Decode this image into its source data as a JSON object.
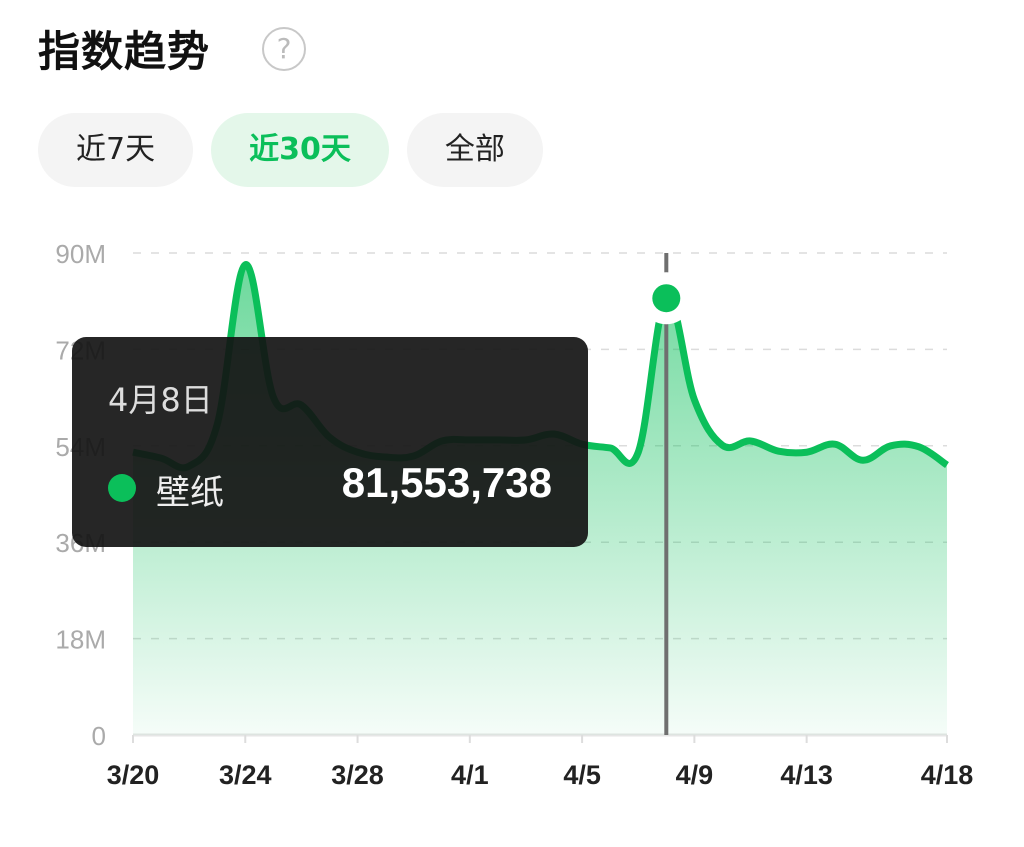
{
  "header": {
    "title": "指数趋势",
    "help_icon": "question-circle-icon"
  },
  "tabs": [
    {
      "label": "近7天",
      "active": false
    },
    {
      "label": "近30天",
      "active": true
    },
    {
      "label": "全部",
      "active": false
    }
  ],
  "colors": {
    "accent": "#0bbf5a",
    "tooltip_bg": "#1e1e1e"
  },
  "tooltip": {
    "date": "4月8日",
    "series": "壁纸",
    "value": "81,553,738"
  },
  "chart_data": {
    "type": "area",
    "title": "",
    "xlabel": "",
    "ylabel": "",
    "ylim": [
      0,
      90000000
    ],
    "yticks": [
      0,
      18000000,
      36000000,
      54000000,
      72000000,
      90000000
    ],
    "ytick_labels": [
      "0",
      "18M",
      "36M",
      "54M",
      "72M",
      "90M"
    ],
    "xtick_labels": [
      "3/20",
      "3/24",
      "3/28",
      "4/1",
      "4/5",
      "4/9",
      "4/13",
      "4/18"
    ],
    "grid": true,
    "x": [
      "3/20",
      "3/21",
      "3/22",
      "3/23",
      "3/24",
      "3/25",
      "3/26",
      "3/27",
      "3/28",
      "3/29",
      "3/30",
      "3/31",
      "4/1",
      "4/2",
      "4/3",
      "4/4",
      "4/5",
      "4/6",
      "4/7",
      "4/8",
      "4/9",
      "4/10",
      "4/11",
      "4/12",
      "4/13",
      "4/14",
      "4/15",
      "4/16",
      "4/17",
      "4/18"
    ],
    "series": [
      {
        "name": "壁纸",
        "values": [
          52800000,
          51700000,
          50200000,
          58000000,
          87800000,
          63100000,
          61600000,
          55600000,
          52800000,
          51900000,
          52100000,
          54900000,
          55100000,
          55100000,
          55100000,
          56200000,
          54300000,
          53600000,
          52800000,
          81553738,
          62600000,
          54100000,
          54900000,
          53000000,
          52800000,
          54300000,
          51300000,
          54000000,
          53800000,
          50400000
        ]
      }
    ],
    "highlight": {
      "x": "4/8",
      "value": 81553738
    }
  }
}
